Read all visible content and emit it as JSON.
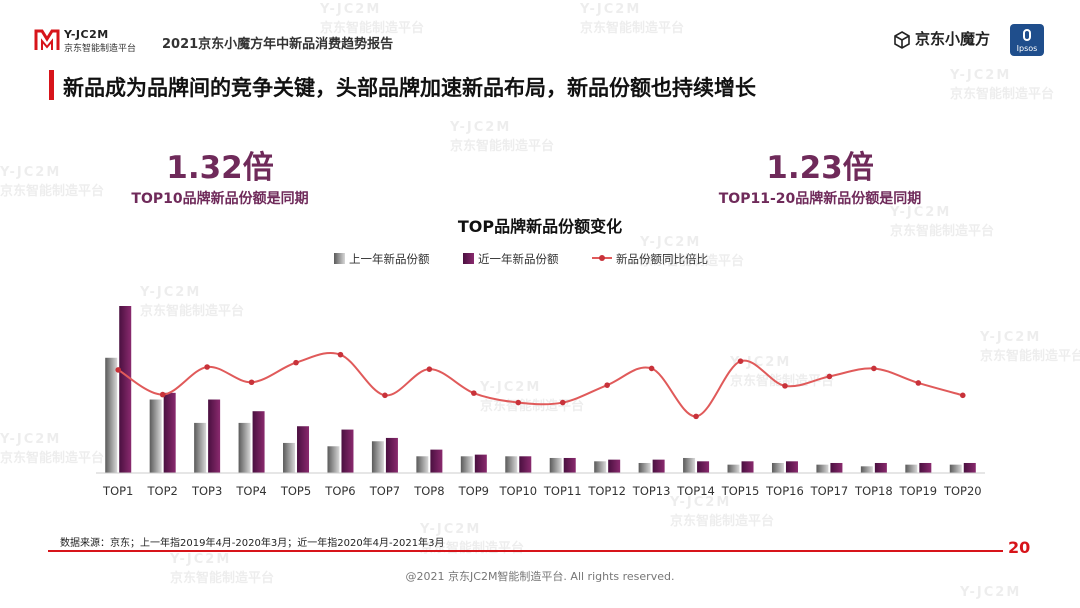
{
  "header": {
    "logo_name": "Y-JC2M",
    "logo_sub": "京东智能制造平台",
    "report_title": "2021京东小魔方年中新品消费趋势报告",
    "brand_right": "京东小魔方",
    "partner": "Ipsos"
  },
  "headline": "新品成为品牌间的竞争关键，头部品牌加速新品布局，新品份额也持续增长",
  "stats": [
    {
      "value": "1.32倍",
      "label": "TOP10品牌新品份额是同期"
    },
    {
      "value": "1.23倍",
      "label": "TOP11-20品牌新品份额是同期"
    }
  ],
  "watermark": {
    "line1": "Y-JC2M",
    "line2": "京东智能制造平台"
  },
  "colors": {
    "accent": "#d7141a",
    "prev_bar": "#8a8a8a",
    "recent_bar": "#6b1d55",
    "ratio_line": "#e05a5a",
    "stat_text": "#6f2a5a"
  },
  "chart_data": {
    "type": "bar",
    "title": "TOP品牌新品份额变化",
    "categories": [
      "TOP1",
      "TOP2",
      "TOP3",
      "TOP4",
      "TOP5",
      "TOP6",
      "TOP7",
      "TOP8",
      "TOP9",
      "TOP10",
      "TOP11",
      "TOP12",
      "TOP13",
      "TOP14",
      "TOP15",
      "TOP16",
      "TOP17",
      "TOP18",
      "TOP19",
      "TOP20"
    ],
    "series": [
      {
        "name": "上一年新品份额",
        "type": "bar",
        "values": [
          69,
          44,
          30,
          30,
          18,
          16,
          19,
          10,
          10,
          10,
          9,
          7,
          6,
          9,
          5,
          6,
          5,
          4,
          5,
          5
        ]
      },
      {
        "name": "近一年新品份额",
        "type": "bar",
        "values": [
          100,
          48,
          44,
          37,
          28,
          26,
          21,
          14,
          11,
          10,
          9,
          8,
          8,
          7,
          7,
          7,
          6,
          6,
          6,
          6
        ]
      },
      {
        "name": "新品份额同比倍比",
        "type": "line",
        "axis": "secondary",
        "values": [
          1.42,
          1.08,
          1.46,
          1.25,
          1.52,
          1.63,
          1.07,
          1.43,
          1.1,
          0.97,
          0.97,
          1.21,
          1.44,
          0.78,
          1.54,
          1.2,
          1.33,
          1.44,
          1.24,
          1.07
        ]
      }
    ],
    "ylim": [
      0,
      100
    ],
    "y2lim": [
      0,
      2.3
    ],
    "legend_position": "top-center",
    "grid": false
  },
  "footer": {
    "source": "数据来源：京东；上一年指2019年4月-2020年3月；近一年指2020年4月-2021年3月",
    "page": "20",
    "copyright": "@2021 京东JC2M智能制造平台. All rights reserved."
  }
}
